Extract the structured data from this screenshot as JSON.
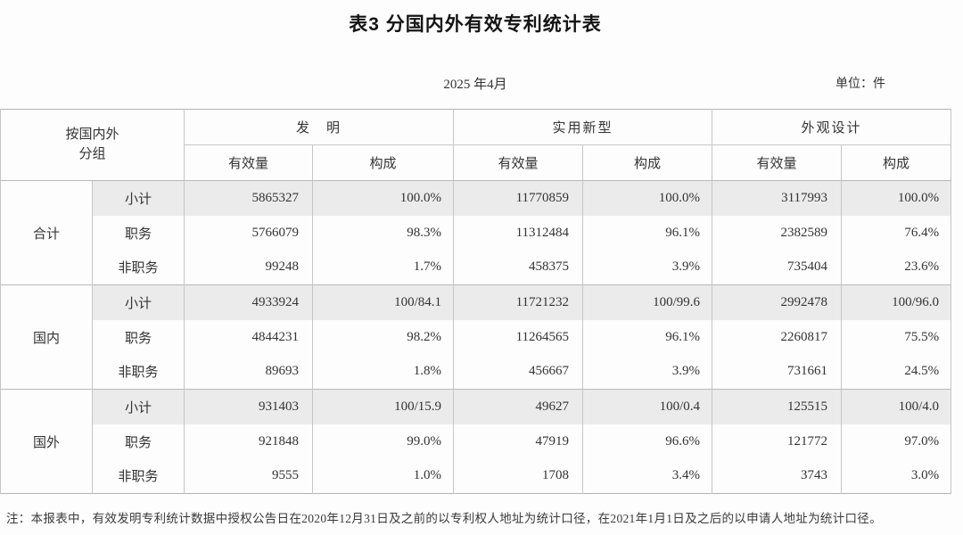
{
  "page": {
    "title": "表3 分国内外有效专利统计表",
    "period": "2025 年4月",
    "unit": "单位：件",
    "note": "注：本报表中，有效发明专利统计数据中授权公告日在2020年12月31日及之前的以专利权人地址为统计口径，在2021年1月1日及之后的以申请人地址为统计口径。"
  },
  "table": {
    "corner_header": [
      "按国内外",
      "分组"
    ],
    "col_groups": [
      "发　明",
      "实用新型",
      "外观设计"
    ],
    "sub_headers": [
      "有效量",
      "构成"
    ],
    "groups": [
      {
        "label": "合计",
        "rows": [
          {
            "label": "小计",
            "highlight": true,
            "values": [
              "5865327",
              "100.0%",
              "11770859",
              "100.0%",
              "3117993",
              "100.0%"
            ]
          },
          {
            "label": "职务",
            "highlight": false,
            "values": [
              "5766079",
              "98.3%",
              "11312484",
              "96.1%",
              "2382589",
              "76.4%"
            ]
          },
          {
            "label": "非职务",
            "highlight": false,
            "values": [
              "99248",
              "1.7%",
              "458375",
              "3.9%",
              "735404",
              "23.6%"
            ]
          }
        ]
      },
      {
        "label": "国内",
        "rows": [
          {
            "label": "小计",
            "highlight": true,
            "values": [
              "4933924",
              "100/84.1",
              "11721232",
              "100/99.6",
              "2992478",
              "100/96.0"
            ]
          },
          {
            "label": "职务",
            "highlight": false,
            "values": [
              "4844231",
              "98.2%",
              "11264565",
              "96.1%",
              "2260817",
              "75.5%"
            ]
          },
          {
            "label": "非职务",
            "highlight": false,
            "values": [
              "89693",
              "1.8%",
              "456667",
              "3.9%",
              "731661",
              "24.5%"
            ]
          }
        ]
      },
      {
        "label": "国外",
        "rows": [
          {
            "label": "小计",
            "highlight": true,
            "values": [
              "931403",
              "100/15.9",
              "49627",
              "100/0.4",
              "125515",
              "100/4.0"
            ]
          },
          {
            "label": "职务",
            "highlight": false,
            "values": [
              "921848",
              "99.0%",
              "47919",
              "96.6%",
              "121772",
              "97.0%"
            ]
          },
          {
            "label": "非职务",
            "highlight": false,
            "values": [
              "9555",
              "1.0%",
              "1708",
              "3.4%",
              "3743",
              "3.0%"
            ]
          }
        ]
      }
    ]
  },
  "colors": {
    "highlight_row_bg": "#ebebeb",
    "grid_line": "#c6c6c6",
    "strong_line": "#b2b2b2",
    "text": "#2b2b2b"
  }
}
